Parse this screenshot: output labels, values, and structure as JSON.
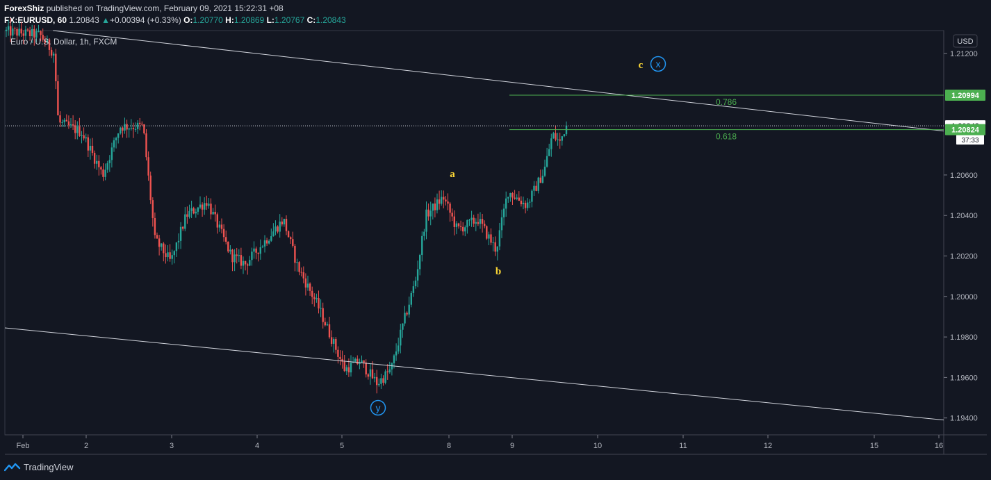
{
  "header": {
    "author": "ForexShiz",
    "published_text": "published on TradingView.com, February 09, 2021 15:22:31 +08",
    "symbol": "FX:EURUSD, 60",
    "last": "1.20843",
    "change": "+0.00394 (+0.33%)",
    "open_label": "O:",
    "open": "1.20770",
    "high_label": "H:",
    "high": "1.20869",
    "low_label": "L:",
    "low": "1.20767",
    "close_label": "C:",
    "close": "1.20843"
  },
  "legend_title": "Euro / U.S. Dollar, 1h, FXCM",
  "currency": "USD",
  "footer": {
    "brand": "TradingView"
  },
  "colors": {
    "bg": "#131722",
    "up": "#26a69a",
    "down": "#ef5350",
    "fib": "#4caf50",
    "wave": "#fdd835",
    "circle": "#2196f3"
  },
  "chart_data": {
    "type": "candlestick",
    "title": "Euro / U.S. Dollar, 1h, FXCM",
    "y_ticks": [
      1.212,
      1.206,
      1.204,
      1.202,
      1.2,
      1.198,
      1.196,
      1.194
    ],
    "y_tick_labels": [
      "1.21200",
      "1.20600",
      "1.20400",
      "1.20200",
      "1.20000",
      "1.19800",
      "1.19600",
      "1.19400"
    ],
    "ylim": [
      1.1931,
      1.2128
    ],
    "x_tick_labels": [
      "Feb",
      "2",
      "3",
      "4",
      "5",
      "8",
      "9",
      "10",
      "11",
      "12",
      "15",
      "16"
    ],
    "price_labels": [
      {
        "name": "fib-0786-price",
        "value": 1.20994,
        "text": "1.20994",
        "style": "green"
      },
      {
        "name": "last-price",
        "value": 1.20843,
        "text": "1.20843",
        "style": "white"
      },
      {
        "name": "countdown",
        "value": 1.20774,
        "text": "37:33",
        "style": "white-small"
      },
      {
        "name": "fib-0618-price",
        "value": 1.20824,
        "text": "1.20824",
        "style": "green"
      }
    ],
    "fib_levels": [
      {
        "label": "0.786",
        "value": 1.20994
      },
      {
        "label": "0.618",
        "value": 1.20824
      }
    ],
    "trendlines": [
      {
        "name": "upper-trendline",
        "points": [
          [
            1.2134,
            0.0
          ],
          [
            1.20817,
            1.0
          ]
        ]
      },
      {
        "name": "lower-trendline",
        "points": [
          [
            1.19845,
            0.0
          ],
          [
            1.1939,
            1.0
          ]
        ]
      }
    ],
    "wave_labels": [
      "a",
      "b",
      "c"
    ],
    "circle_labels": [
      "x",
      "y"
    ]
  }
}
